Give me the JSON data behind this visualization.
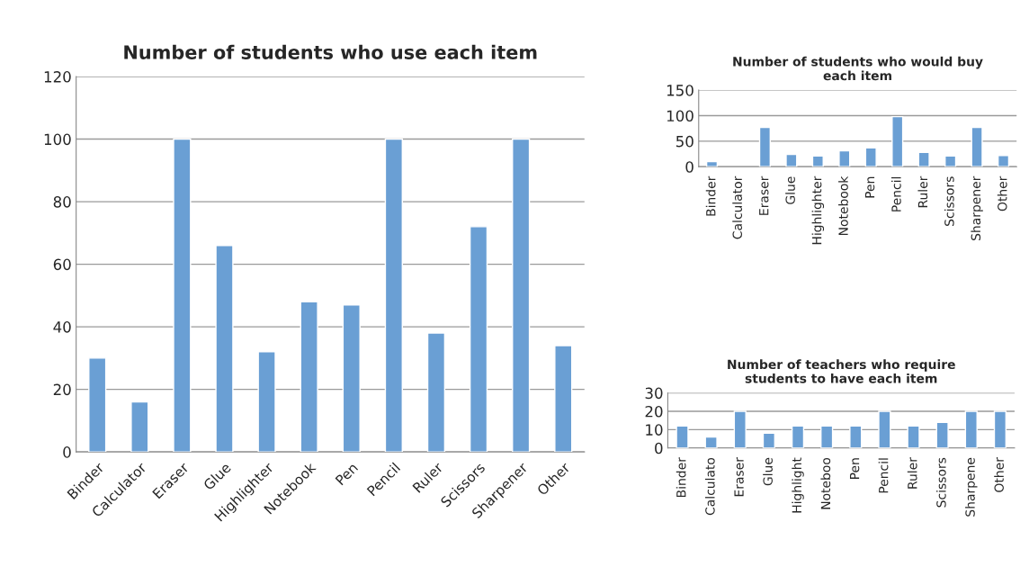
{
  "chart_data": [
    {
      "type": "bar",
      "title": "Number of students who use each item",
      "categories": [
        "Binder",
        "Calculator",
        "Eraser",
        "Glue",
        "Highlighter",
        "Notebook",
        "Pen",
        "Pencil",
        "Ruler",
        "Scissors",
        "Sharpener",
        "Other"
      ],
      "values": [
        30,
        16,
        100,
        66,
        32,
        48,
        47,
        100,
        38,
        72,
        100,
        34
      ],
      "color": "#6a9fd4",
      "ylim": [
        0,
        120
      ],
      "yticks": [
        0,
        20,
        40,
        60,
        80,
        100,
        120
      ],
      "grid": "y",
      "legend": false
    },
    {
      "type": "bar",
      "title": "Number of students who would buy\neach item",
      "categories": [
        "Binder",
        "Calculator",
        "Eraser",
        "Glue",
        "Highlighter",
        "Notebook",
        "Pen",
        "Pencil",
        "Ruler",
        "Scissors",
        "Sharpener",
        "Other"
      ],
      "values": [
        10,
        null,
        77,
        24,
        21,
        31,
        37,
        98,
        28,
        21,
        77,
        22
      ],
      "color": "#6a9fd4",
      "ylim": [
        0,
        150
      ],
      "yticks": [
        0,
        50,
        100,
        150
      ],
      "grid": "y",
      "legend": false
    },
    {
      "type": "bar",
      "title": "Number of teachers who require\nstudents to have each item",
      "categories": [
        "Binder",
        "Calculato",
        "Eraser",
        "Glue",
        "Highlight",
        "Noteboo",
        "Pen",
        "Pencil",
        "Ruler",
        "Scissors",
        "Sharpene",
        "Other"
      ],
      "values": [
        12,
        6,
        20,
        8,
        12,
        12,
        12,
        20,
        12,
        14,
        20,
        20
      ],
      "color": "#6a9fd4",
      "ylim": [
        0,
        30
      ],
      "yticks": [
        0,
        10,
        20,
        30
      ],
      "grid": "y",
      "legend": false
    }
  ]
}
